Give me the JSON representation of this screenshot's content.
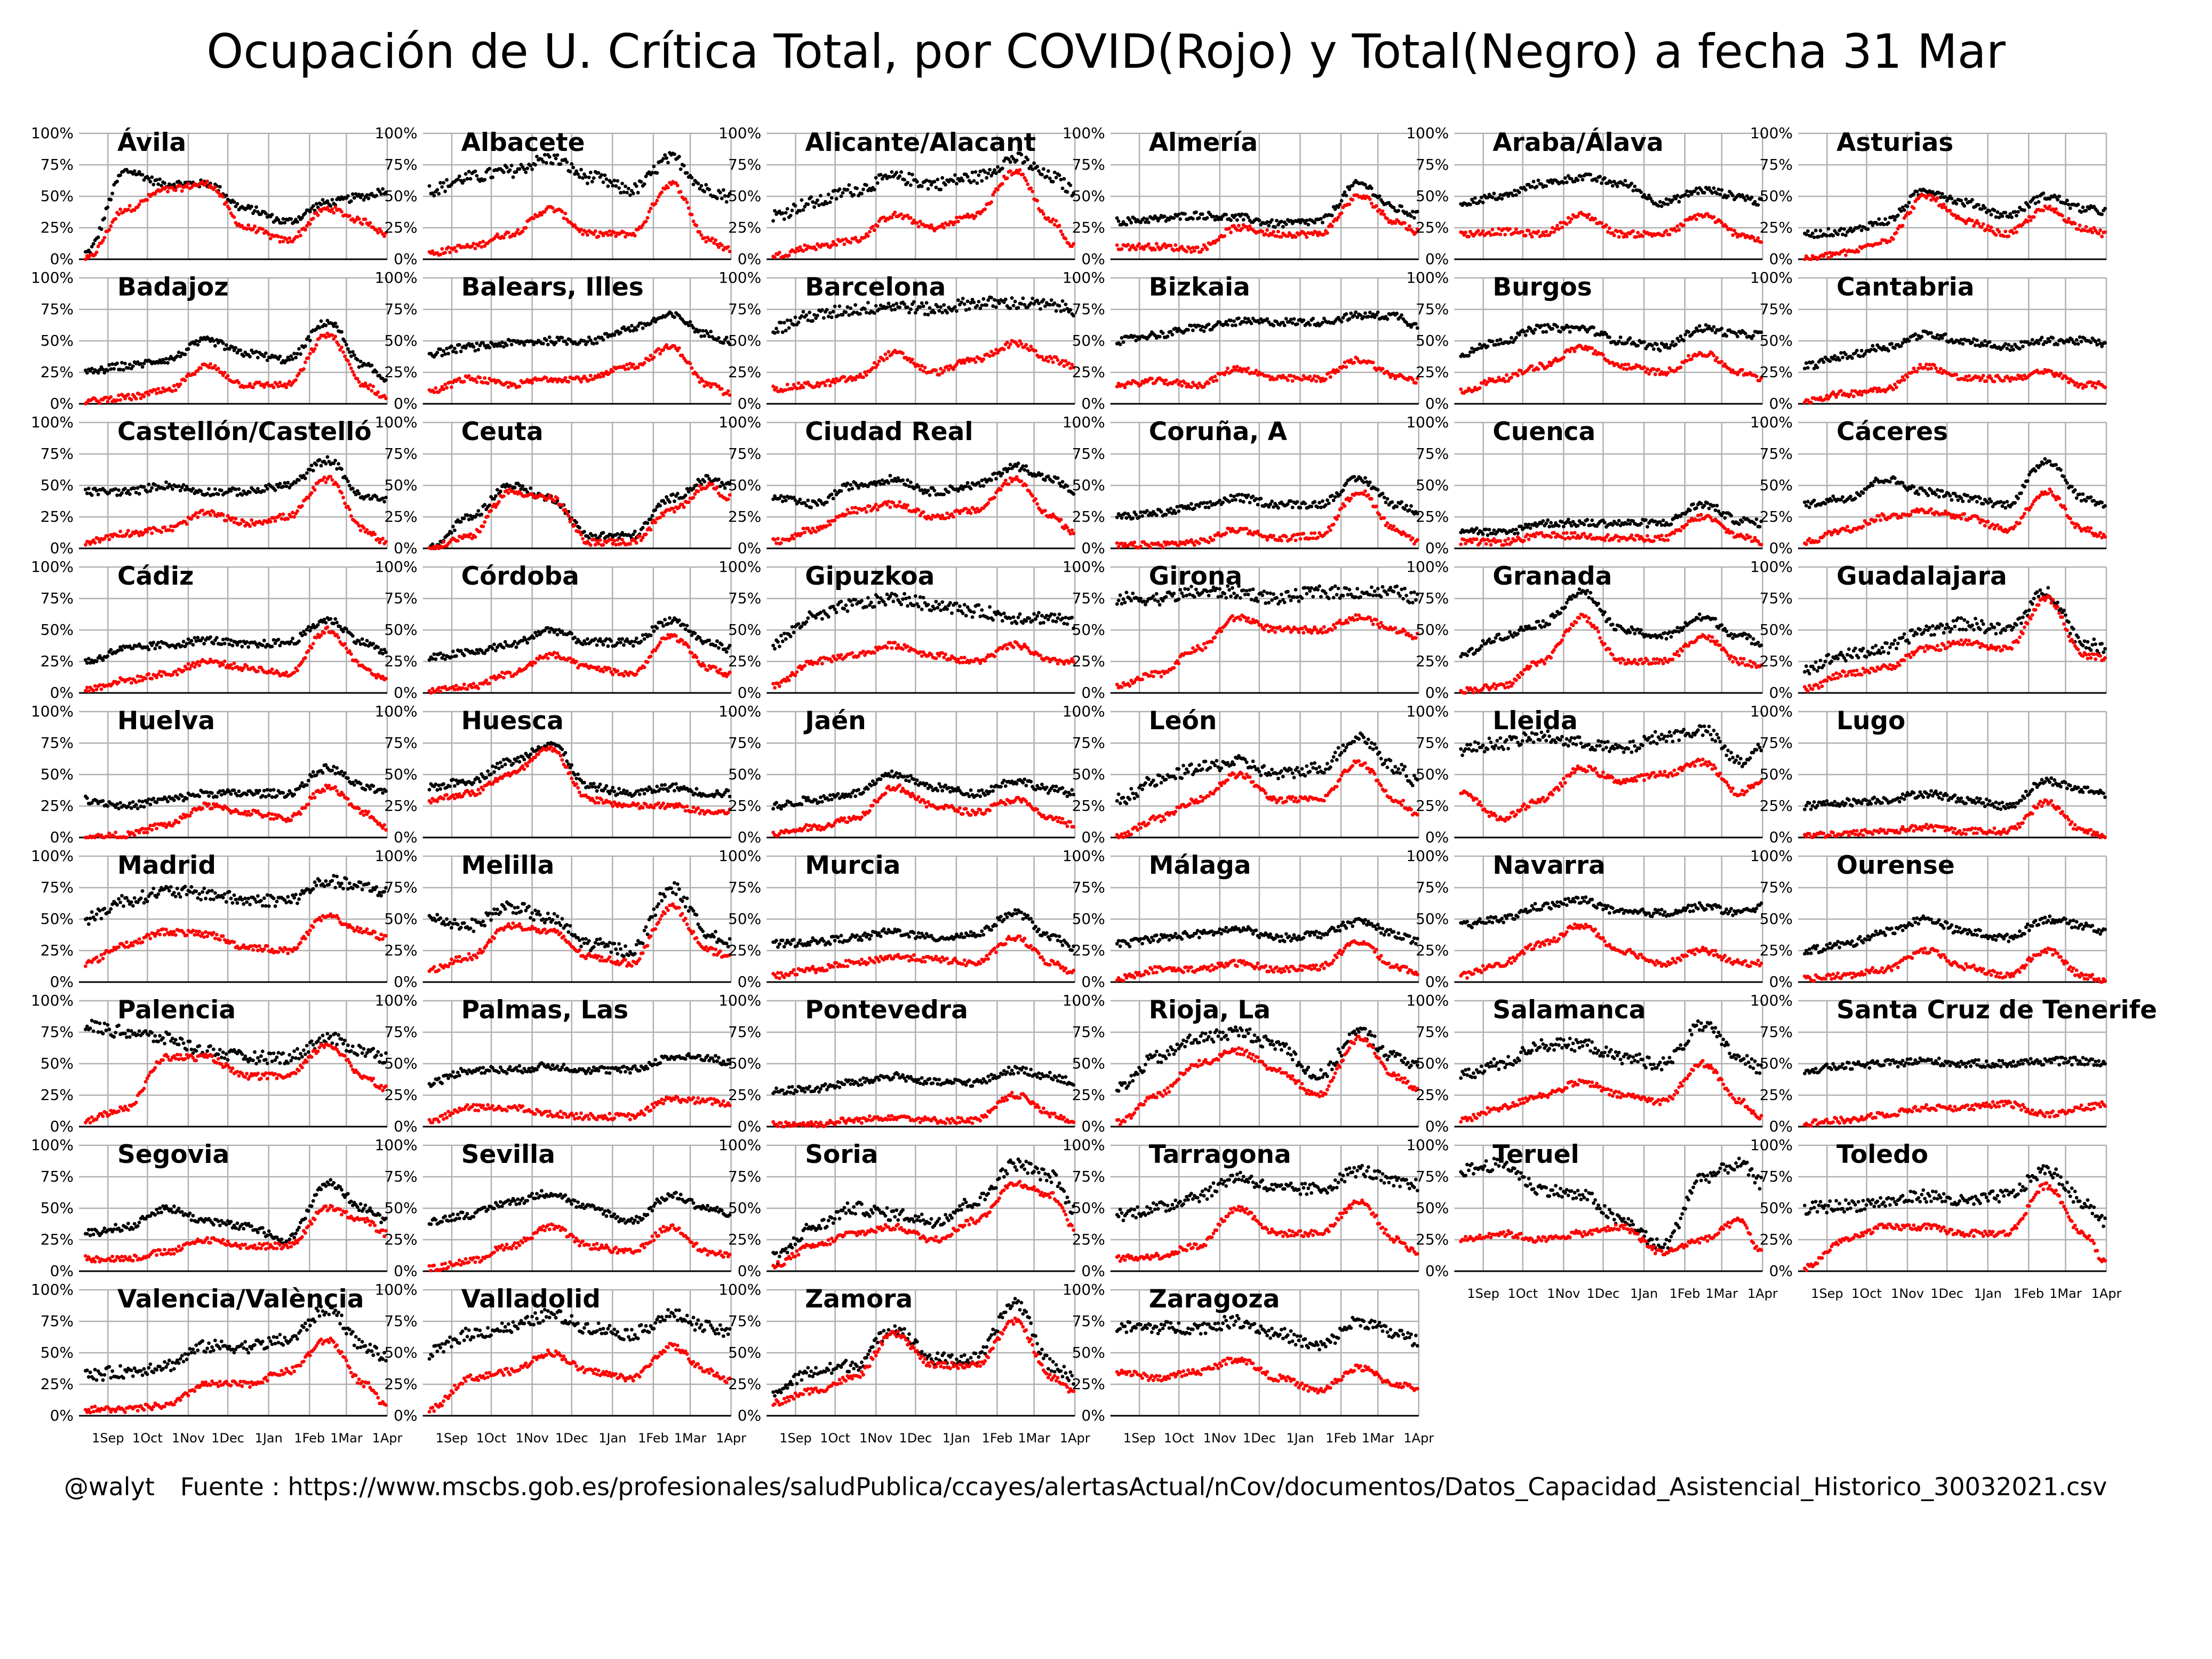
{
  "title": "Ocupación de U. Crítica Total, por COVID(Rojo) y Total(Negro) a fecha 31 Mar",
  "footer": {
    "handle": "@walyt",
    "source": "Fuente : https://www.mscbs.gob.es/profesionales/saludPublica/ccayes/alertasActual/nCov/documentos/Datos_Capacidad_Asistencial_Historico_30032021.csv"
  },
  "chart_data": {
    "type": "scatter",
    "layout": "small-multiples",
    "ylim": [
      0,
      100
    ],
    "y_ticks": [
      "0%",
      "25%",
      "50%",
      "75%",
      "100%"
    ],
    "y_tick_values": [
      0,
      25,
      50,
      75,
      100
    ],
    "x_range": [
      "2020-08-10",
      "2021-04-01"
    ],
    "x_tick_dates": [
      "2020-09-01",
      "2020-10-01",
      "2020-11-01",
      "2020-12-01",
      "2021-01-01",
      "2021-02-01",
      "2021-03-01",
      "2021-04-01"
    ],
    "x_ticks": [
      "1Sep",
      "1Oct",
      "1Nov",
      "1Dec",
      "1Jan",
      "1Feb",
      "1Mar",
      "1Apr"
    ],
    "grid": true,
    "series_colors": {
      "covid": "#ff0000",
      "total": "#000000"
    },
    "sample_dates": [
      "2020-08-15",
      "2020-09-15",
      "2020-10-15",
      "2020-11-15",
      "2020-12-15",
      "2021-01-15",
      "2021-02-15",
      "2021-03-15",
      "2021-03-31"
    ],
    "panels": [
      {
        "name": "Ávila",
        "total": [
          5,
          70,
          60,
          60,
          40,
          30,
          45,
          50,
          55
        ],
        "covid": [
          0,
          40,
          55,
          60,
          25,
          15,
          40,
          30,
          20
        ]
      },
      {
        "name": "Albacete",
        "total": [
          55,
          65,
          70,
          80,
          65,
          55,
          80,
          55,
          50
        ],
        "covid": [
          5,
          10,
          20,
          40,
          20,
          20,
          60,
          15,
          8
        ]
      },
      {
        "name": "Alicante/Alacant",
        "total": [
          35,
          45,
          55,
          65,
          60,
          65,
          80,
          65,
          55
        ],
        "covid": [
          3,
          10,
          15,
          35,
          25,
          35,
          70,
          30,
          10
        ]
      },
      {
        "name": "Almería",
        "total": [
          30,
          32,
          35,
          33,
          28,
          30,
          60,
          40,
          35
        ],
        "covid": [
          10,
          10,
          8,
          25,
          20,
          20,
          50,
          30,
          22
        ]
      },
      {
        "name": "Araba/Álava",
        "total": [
          45,
          50,
          60,
          65,
          60,
          45,
          55,
          50,
          45
        ],
        "covid": [
          20,
          22,
          20,
          35,
          20,
          20,
          35,
          20,
          15
        ]
      },
      {
        "name": "Asturias",
        "total": [
          20,
          22,
          30,
          55,
          45,
          35,
          50,
          40,
          38
        ],
        "covid": [
          0,
          5,
          15,
          50,
          30,
          20,
          40,
          25,
          20
        ]
      },
      {
        "name": "Badajoz",
        "total": [
          25,
          30,
          35,
          50,
          40,
          35,
          65,
          30,
          20
        ],
        "covid": [
          2,
          5,
          10,
          30,
          15,
          15,
          55,
          15,
          5
        ]
      },
      {
        "name": "Balears, Illes",
        "total": [
          40,
          45,
          48,
          50,
          50,
          60,
          70,
          55,
          50
        ],
        "covid": [
          10,
          20,
          15,
          20,
          20,
          30,
          45,
          15,
          8
        ]
      },
      {
        "name": "Barcelona",
        "total": [
          60,
          70,
          75,
          78,
          75,
          80,
          80,
          78,
          75
        ],
        "covid": [
          12,
          15,
          20,
          40,
          25,
          35,
          48,
          35,
          30
        ]
      },
      {
        "name": "Bizkaia",
        "total": [
          50,
          55,
          60,
          65,
          65,
          65,
          70,
          70,
          62
        ],
        "covid": [
          15,
          18,
          15,
          28,
          20,
          20,
          35,
          22,
          18
        ]
      },
      {
        "name": "Burgos",
        "total": [
          40,
          50,
          60,
          60,
          50,
          45,
          60,
          55,
          55
        ],
        "covid": [
          10,
          20,
          30,
          45,
          30,
          25,
          40,
          25,
          20
        ]
      },
      {
        "name": "Cantabria",
        "total": [
          30,
          38,
          45,
          55,
          50,
          45,
          50,
          50,
          48
        ],
        "covid": [
          3,
          8,
          12,
          30,
          20,
          20,
          25,
          15,
          15
        ]
      },
      {
        "name": "Castellón/Castelló",
        "total": [
          45,
          45,
          50,
          45,
          45,
          50,
          70,
          40,
          40
        ],
        "covid": [
          5,
          12,
          15,
          28,
          20,
          25,
          55,
          15,
          5
        ]
      },
      {
        "name": "Ceuta",
        "total": [
          0,
          25,
          50,
          40,
          10,
          10,
          40,
          55,
          50
        ],
        "covid": [
          0,
          10,
          45,
          40,
          5,
          5,
          30,
          50,
          40
        ]
      },
      {
        "name": "Ciudad Real",
        "total": [
          40,
          35,
          50,
          55,
          45,
          50,
          65,
          55,
          45
        ],
        "covid": [
          5,
          15,
          30,
          35,
          25,
          30,
          55,
          25,
          12
        ]
      },
      {
        "name": "Coruña, A",
        "total": [
          25,
          28,
          33,
          40,
          35,
          35,
          55,
          35,
          30
        ],
        "covid": [
          2,
          3,
          5,
          15,
          8,
          10,
          45,
          15,
          5
        ]
      },
      {
        "name": "Cuenca",
        "total": [
          15,
          12,
          20,
          20,
          20,
          20,
          35,
          22,
          20
        ],
        "covid": [
          5,
          5,
          10,
          10,
          8,
          8,
          25,
          10,
          5
        ]
      },
      {
        "name": "Cáceres",
        "total": [
          35,
          40,
          55,
          45,
          40,
          35,
          70,
          40,
          35
        ],
        "covid": [
          5,
          15,
          25,
          30,
          25,
          15,
          45,
          15,
          10
        ]
      },
      {
        "name": "Cádiz",
        "total": [
          25,
          35,
          38,
          42,
          38,
          40,
          58,
          40,
          32
        ],
        "covid": [
          3,
          10,
          15,
          25,
          20,
          15,
          50,
          20,
          10
        ]
      },
      {
        "name": "Córdoba",
        "total": [
          28,
          32,
          38,
          50,
          40,
          40,
          58,
          40,
          35
        ],
        "covid": [
          2,
          5,
          15,
          30,
          20,
          15,
          45,
          20,
          15
        ]
      },
      {
        "name": "Gipuzkoa",
        "total": [
          40,
          60,
          70,
          75,
          70,
          65,
          60,
          60,
          55
        ],
        "covid": [
          5,
          25,
          30,
          38,
          30,
          25,
          38,
          25,
          25
        ]
      },
      {
        "name": "Girona",
        "total": [
          75,
          75,
          80,
          80,
          75,
          80,
          80,
          80,
          75
        ],
        "covid": [
          5,
          15,
          35,
          60,
          50,
          50,
          60,
          50,
          45
        ]
      },
      {
        "name": "Granada",
        "total": [
          30,
          45,
          55,
          80,
          50,
          45,
          60,
          45,
          40
        ],
        "covid": [
          2,
          5,
          25,
          60,
          25,
          25,
          45,
          25,
          20
        ]
      },
      {
        "name": "Guadalajara",
        "total": [
          20,
          30,
          35,
          50,
          55,
          50,
          80,
          40,
          35
        ],
        "covid": [
          3,
          15,
          20,
          35,
          40,
          35,
          75,
          30,
          28
        ]
      },
      {
        "name": "Huelva",
        "total": [
          30,
          25,
          30,
          35,
          35,
          35,
          55,
          40,
          35
        ],
        "covid": [
          0,
          2,
          10,
          25,
          20,
          15,
          40,
          20,
          8
        ]
      },
      {
        "name": "Huesca",
        "total": [
          40,
          45,
          60,
          75,
          40,
          35,
          40,
          35,
          35
        ],
        "covid": [
          30,
          35,
          50,
          70,
          30,
          25,
          25,
          20,
          20
        ]
      },
      {
        "name": "Jaén",
        "total": [
          25,
          30,
          35,
          50,
          40,
          35,
          45,
          38,
          35
        ],
        "covid": [
          3,
          8,
          15,
          40,
          25,
          20,
          30,
          15,
          10
        ]
      },
      {
        "name": "León",
        "total": [
          30,
          45,
          55,
          60,
          50,
          55,
          80,
          55,
          45
        ],
        "covid": [
          0,
          15,
          30,
          50,
          30,
          30,
          60,
          30,
          18
        ]
      },
      {
        "name": "Lleida",
        "total": [
          70,
          75,
          80,
          75,
          70,
          80,
          85,
          60,
          70
        ],
        "covid": [
          35,
          15,
          30,
          55,
          45,
          50,
          60,
          35,
          45
        ]
      },
      {
        "name": "Lugo",
        "total": [
          25,
          28,
          30,
          35,
          30,
          25,
          45,
          38,
          35
        ],
        "covid": [
          2,
          3,
          5,
          8,
          5,
          5,
          28,
          5,
          2
        ]
      },
      {
        "name": "Madrid",
        "total": [
          50,
          65,
          72,
          70,
          65,
          65,
          80,
          75,
          72
        ],
        "covid": [
          15,
          30,
          40,
          38,
          28,
          25,
          52,
          40,
          35
        ]
      },
      {
        "name": "Melilla",
        "total": [
          50,
          45,
          60,
          50,
          30,
          25,
          75,
          40,
          30
        ],
        "covid": [
          10,
          20,
          45,
          40,
          20,
          15,
          60,
          25,
          20
        ]
      },
      {
        "name": "Murcia",
        "total": [
          30,
          32,
          35,
          40,
          35,
          38,
          55,
          35,
          28
        ],
        "covid": [
          5,
          10,
          15,
          20,
          18,
          15,
          35,
          15,
          8
        ]
      },
      {
        "name": "Málaga",
        "total": [
          30,
          35,
          38,
          42,
          35,
          38,
          48,
          38,
          32
        ],
        "covid": [
          3,
          10,
          10,
          15,
          10,
          12,
          32,
          12,
          8
        ]
      },
      {
        "name": "Navarra",
        "total": [
          45,
          50,
          60,
          65,
          55,
          55,
          60,
          55,
          60
        ],
        "covid": [
          5,
          15,
          30,
          45,
          25,
          15,
          25,
          15,
          15
        ]
      },
      {
        "name": "Ourense",
        "total": [
          25,
          30,
          40,
          50,
          40,
          35,
          50,
          45,
          40
        ],
        "covid": [
          3,
          5,
          10,
          25,
          12,
          5,
          25,
          5,
          2
        ]
      },
      {
        "name": "Palencia",
        "total": [
          80,
          75,
          70,
          60,
          55,
          55,
          70,
          60,
          55
        ],
        "covid": [
          5,
          15,
          55,
          55,
          40,
          40,
          65,
          40,
          30
        ]
      },
      {
        "name": "Palmas, Las",
        "total": [
          35,
          45,
          45,
          48,
          45,
          45,
          55,
          55,
          50
        ],
        "covid": [
          5,
          15,
          15,
          10,
          8,
          8,
          22,
          20,
          18
        ]
      },
      {
        "name": "Pontevedra",
        "total": [
          28,
          30,
          35,
          40,
          35,
          35,
          45,
          40,
          35
        ],
        "covid": [
          2,
          2,
          5,
          8,
          5,
          5,
          25,
          10,
          3
        ]
      },
      {
        "name": "Rioja, La",
        "total": [
          30,
          55,
          70,
          75,
          65,
          40,
          75,
          55,
          50
        ],
        "covid": [
          3,
          25,
          50,
          60,
          45,
          25,
          70,
          40,
          30
        ]
      },
      {
        "name": "Salamanca",
        "total": [
          40,
          50,
          65,
          65,
          55,
          50,
          80,
          55,
          45
        ],
        "covid": [
          5,
          15,
          25,
          35,
          25,
          20,
          50,
          20,
          8
        ]
      },
      {
        "name": "Santa Cruz de Tenerife",
        "total": [
          45,
          48,
          50,
          52,
          50,
          50,
          52,
          52,
          50
        ],
        "covid": [
          3,
          5,
          10,
          15,
          15,
          18,
          10,
          15,
          18
        ]
      },
      {
        "name": "Segovia",
        "total": [
          30,
          35,
          50,
          40,
          35,
          25,
          70,
          50,
          40
        ],
        "covid": [
          10,
          10,
          15,
          25,
          20,
          20,
          50,
          40,
          30
        ]
      },
      {
        "name": "Sevilla",
        "total": [
          40,
          45,
          55,
          62,
          50,
          40,
          60,
          50,
          45
        ],
        "covid": [
          2,
          8,
          20,
          35,
          20,
          15,
          35,
          15,
          12
        ]
      },
      {
        "name": "Soria",
        "total": [
          10,
          35,
          50,
          45,
          40,
          55,
          85,
          75,
          50
        ],
        "covid": [
          5,
          20,
          30,
          35,
          25,
          40,
          70,
          60,
          35
        ]
      },
      {
        "name": "Tarragona",
        "total": [
          45,
          50,
          60,
          75,
          65,
          65,
          80,
          70,
          68
        ],
        "covid": [
          10,
          12,
          20,
          50,
          30,
          30,
          55,
          25,
          15
        ]
      },
      {
        "name": "Teruel",
        "total": [
          80,
          85,
          65,
          60,
          40,
          20,
          75,
          85,
          70
        ],
        "covid": [
          25,
          30,
          25,
          30,
          35,
          15,
          25,
          40,
          15
        ]
      },
      {
        "name": "Toledo",
        "total": [
          50,
          52,
          55,
          60,
          55,
          60,
          80,
          55,
          40
        ],
        "covid": [
          3,
          25,
          35,
          35,
          30,
          30,
          68,
          30,
          8
        ]
      },
      {
        "name": "Valencia/València",
        "total": [
          32,
          35,
          40,
          55,
          55,
          60,
          85,
          55,
          45
        ],
        "covid": [
          5,
          5,
          8,
          25,
          25,
          35,
          60,
          25,
          8
        ]
      },
      {
        "name": "Valladolid",
        "total": [
          50,
          65,
          70,
          80,
          70,
          65,
          80,
          70,
          65
        ],
        "covid": [
          5,
          30,
          35,
          50,
          35,
          30,
          55,
          35,
          28
        ]
      },
      {
        "name": "Zamora",
        "total": [
          20,
          35,
          40,
          70,
          45,
          45,
          90,
          40,
          30
        ],
        "covid": [
          10,
          20,
          30,
          65,
          40,
          40,
          75,
          30,
          20
        ]
      },
      {
        "name": "Zaragoza",
        "total": [
          70,
          70,
          70,
          75,
          65,
          55,
          75,
          65,
          60
        ],
        "covid": [
          35,
          30,
          35,
          45,
          30,
          20,
          38,
          25,
          22
        ]
      }
    ]
  }
}
